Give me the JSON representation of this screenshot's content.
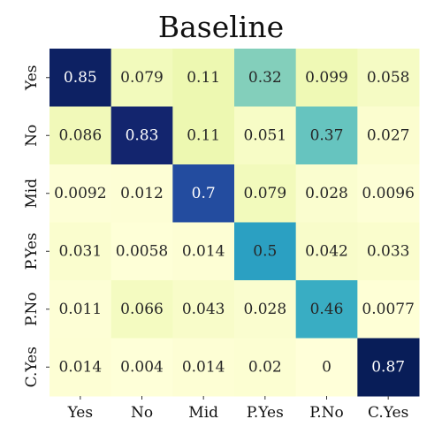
{
  "chart_data": {
    "type": "heatmap",
    "title": "Baseline",
    "x_labels": [
      "Yes",
      "No",
      "Mid",
      "P.Yes",
      "P.No",
      "C.Yes"
    ],
    "y_labels": [
      "Yes",
      "No",
      "Mid",
      "P.Yes",
      "P.No",
      "C.Yes"
    ],
    "values": [
      [
        0.85,
        0.079,
        0.11,
        0.32,
        0.099,
        0.058
      ],
      [
        0.086,
        0.83,
        0.11,
        0.051,
        0.37,
        0.027
      ],
      [
        0.0092,
        0.012,
        0.7,
        0.079,
        0.028,
        0.0096
      ],
      [
        0.031,
        0.0058,
        0.014,
        0.5,
        0.042,
        0.033
      ],
      [
        0.011,
        0.066,
        0.043,
        0.028,
        0.46,
        0.0077
      ],
      [
        0.014,
        0.004,
        0.014,
        0.02,
        0,
        0.87
      ]
    ],
    "value_labels": [
      [
        "0.85",
        "0.079",
        "0.11",
        "0.32",
        "0.099",
        "0.058"
      ],
      [
        "0.086",
        "0.83",
        "0.11",
        "0.051",
        "0.37",
        "0.027"
      ],
      [
        "0.0092",
        "0.012",
        "0.7",
        "0.079",
        "0.028",
        "0.0096"
      ],
      [
        "0.031",
        "0.0058",
        "0.014",
        "0.5",
        "0.042",
        "0.033"
      ],
      [
        "0.011",
        "0.066",
        "0.043",
        "0.028",
        "0.46",
        "0.0077"
      ],
      [
        "0.014",
        "0.004",
        "0.014",
        "0.02",
        "0",
        "0.87"
      ]
    ],
    "colormap": "YlGnBu",
    "vmin": 0,
    "vmax": 0.87,
    "grid": false,
    "legend": "none"
  }
}
